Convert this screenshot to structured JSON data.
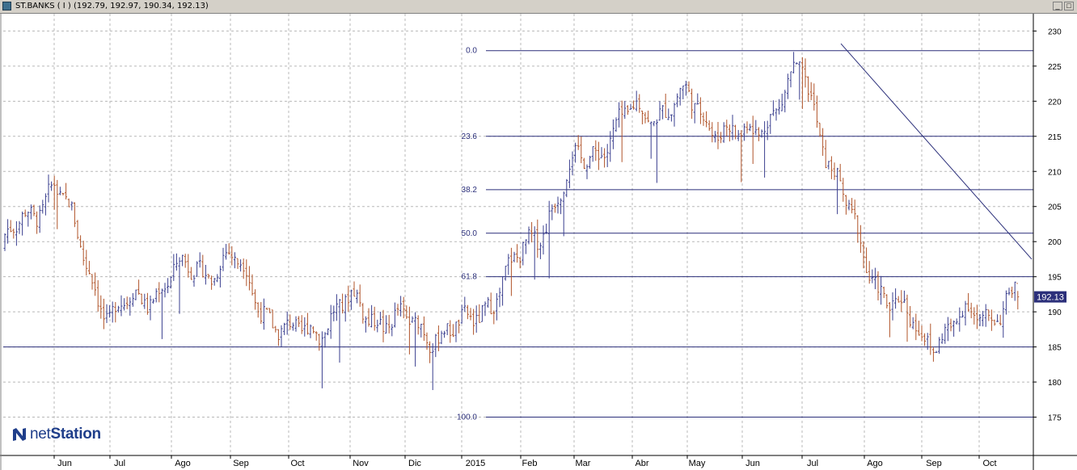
{
  "window": {
    "title": "ST.BANKS ( I ) (192.79, 192.97, 190.34, 192.13)",
    "minimize_symbol": "_",
    "maximize_symbol": "□"
  },
  "brand": {
    "prefix": "net",
    "suffix": "Station"
  },
  "colors": {
    "up": "#3a3f8f",
    "down": "#b0542a",
    "line": "#2b2f7a",
    "grid": "#b8b8b8",
    "price_tag_bg": "#2b2f7a"
  },
  "chart_data": {
    "type": "ohlc",
    "title": "ST.BANKS ( I )",
    "last_bar": {
      "open": 192.79,
      "high": 192.97,
      "low": 190.34,
      "close": 192.13
    },
    "current_price_label": "192.13",
    "ylim": [
      170,
      232
    ],
    "y_ticks": [
      "175",
      "180",
      "185",
      "190",
      "195",
      "200",
      "205",
      "210",
      "215",
      "220",
      "225",
      "230"
    ],
    "x_ticks": [
      "Jun",
      "Jul",
      "Ago",
      "Sep",
      "Oct",
      "Nov",
      "Dic",
      "2015",
      "Feb",
      "Mar",
      "Abr",
      "May",
      "Jun",
      "Jul",
      "Ago",
      "Sep",
      "Oct"
    ],
    "grid": true,
    "fibonacci": {
      "levels": [
        {
          "label": "0.0",
          "price": 227.2
        },
        {
          "label": "23.6",
          "price": 215.0
        },
        {
          "label": "38.2",
          "price": 207.4
        },
        {
          "label": "50.0",
          "price": 201.2
        },
        {
          "label": "61.8",
          "price": 195.0
        },
        {
          "label": "100.0",
          "price": 175.0
        }
      ],
      "from_month": "2015"
    },
    "support_line": {
      "price": 185.0
    },
    "trendline": {
      "from": {
        "month": "Jul",
        "price": 228.2
      },
      "to": {
        "month": "Oct",
        "price": 197.5
      }
    },
    "series_anchors": [
      {
        "month": "May 2014",
        "close": 199.0
      },
      {
        "month": "Jun 2014",
        "close": 208.5
      },
      {
        "month": "Jul 2014",
        "close": 189.0
      },
      {
        "month": "Ago 2014",
        "close": 195.0
      },
      {
        "month": "Sep 2014",
        "close": 197.5
      },
      {
        "month": "Oct 2014",
        "close": 186.0
      },
      {
        "month": "Nov 2014",
        "close": 191.0
      },
      {
        "month": "Dic 2014",
        "close": 188.0
      },
      {
        "month": "Ene 2015",
        "close": 187.0
      },
      {
        "month": "Feb 2015",
        "close": 197.5
      },
      {
        "month": "Mar 2015",
        "close": 210.5
      },
      {
        "month": "Abr 2015",
        "close": 218.0
      },
      {
        "month": "May 2015",
        "close": 220.0
      },
      {
        "month": "Jun 2015",
        "close": 214.0
      },
      {
        "month": "Jul 2015",
        "close": 224.0
      },
      {
        "month": "Ago 2015",
        "close": 197.0
      },
      {
        "month": "Sep 2015",
        "close": 186.0
      },
      {
        "month": "Oct 2015",
        "close": 192.13
      }
    ]
  }
}
